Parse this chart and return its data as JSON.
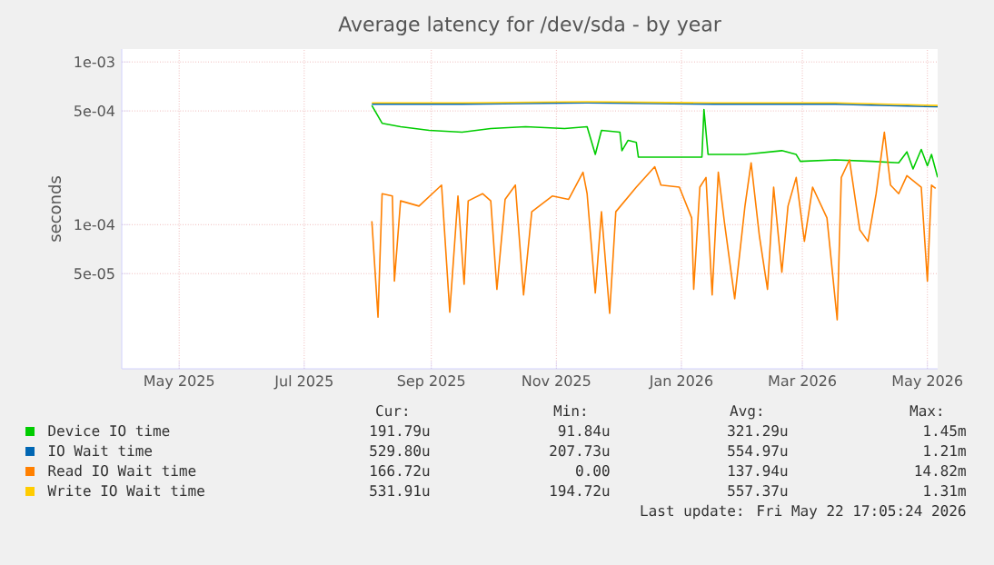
{
  "chart_data": {
    "type": "line",
    "title": "Average latency for /dev/sda - by year",
    "ylabel": "seconds",
    "log": "y",
    "grid": true,
    "legend": "bottom",
    "xlim": [
      "2025-04-18",
      "2026-05-21"
    ],
    "ylim": [
      1.3e-05,
      0.0012
    ],
    "xticks": [
      {
        "value": "2025-05-16",
        "label": "May 2025"
      },
      {
        "value": "2025-07-16",
        "label": "Jul 2025"
      },
      {
        "value": "2025-09-16",
        "label": "Sep 2025"
      },
      {
        "value": "2025-11-16",
        "label": "Nov 2025"
      },
      {
        "value": "2026-01-16",
        "label": "Jan 2026"
      },
      {
        "value": "2026-03-16",
        "label": "Mar 2026"
      },
      {
        "value": "2026-05-16",
        "label": "May 2026"
      }
    ],
    "yticks": [
      {
        "value": 0.001,
        "label": "1e-03"
      },
      {
        "value": 0.0005,
        "label": "5e-04"
      },
      {
        "value": 0.0001,
        "label": "1e-04"
      },
      {
        "value": 5e-05,
        "label": "5e-05"
      }
    ],
    "series": [
      {
        "name": "Device IO time",
        "color": "#00cc00",
        "x": [
          "2025-08-18",
          "2025-08-23",
          "2025-09-01",
          "2025-09-15",
          "2025-10-01",
          "2025-10-15",
          "2025-11-01",
          "2025-11-20",
          "2025-12-01",
          "2025-12-05",
          "2025-12-08",
          "2025-12-17",
          "2025-12-18",
          "2025-12-21",
          "2025-12-25",
          "2025-12-26",
          "2026-01-12",
          "2026-01-26",
          "2026-01-27",
          "2026-01-29",
          "2026-02-16",
          "2026-03-06",
          "2026-03-13",
          "2026-03-15",
          "2026-04-01",
          "2026-04-19",
          "2026-05-02",
          "2026-05-06",
          "2026-05-09",
          "2026-05-13",
          "2026-05-16",
          "2026-05-18",
          "2026-05-21"
        ],
        "values": [
          0.00054,
          0.00042,
          0.0004,
          0.00038,
          0.00037,
          0.00039,
          0.0004,
          0.00039,
          0.0004,
          0.00027,
          0.00038,
          0.00037,
          0.000285,
          0.00033,
          0.00032,
          0.00026,
          0.00026,
          0.00026,
          0.00051,
          0.00027,
          0.00027,
          0.000285,
          0.00027,
          0.000245,
          0.00025,
          0.000245,
          0.00024,
          0.00028,
          0.00022,
          0.00029,
          0.00023,
          0.00027,
          0.000195
        ]
      },
      {
        "name": "IO Wait time",
        "color": "#0066b3",
        "x": [
          "2025-08-18",
          "2025-10-01",
          "2025-12-01",
          "2026-02-01",
          "2026-04-01",
          "2026-05-21"
        ],
        "values": [
          0.00055,
          0.00055,
          0.00056,
          0.00055,
          0.00055,
          0.00053
        ]
      },
      {
        "name": "Read IO Wait time",
        "color": "#ff8000",
        "x": [
          "2025-08-18",
          "2025-08-21",
          "2025-08-23",
          "2025-08-28",
          "2025-08-29",
          "2025-09-01",
          "2025-09-10",
          "2025-09-21",
          "2025-09-25",
          "2025-09-29",
          "2025-10-02",
          "2025-10-04",
          "2025-10-11",
          "2025-10-15",
          "2025-10-18",
          "2025-10-22",
          "2025-10-27",
          "2025-10-31",
          "2025-11-04",
          "2025-11-14",
          "2025-11-22",
          "2025-11-29",
          "2025-12-01",
          "2025-12-05",
          "2025-12-08",
          "2025-12-12",
          "2025-12-15",
          "2025-12-25",
          "2026-01-03",
          "2026-01-06",
          "2026-01-15",
          "2026-01-21",
          "2026-01-22",
          "2026-01-25",
          "2026-01-28",
          "2026-01-31",
          "2026-02-03",
          "2026-02-06",
          "2026-02-11",
          "2026-02-16",
          "2026-02-19",
          "2026-02-23",
          "2026-02-27",
          "2026-03-02",
          "2026-03-06",
          "2026-03-09",
          "2026-03-13",
          "2026-03-17",
          "2026-03-21",
          "2026-03-28",
          "2026-04-02",
          "2026-04-04",
          "2026-04-08",
          "2026-04-13",
          "2026-04-17",
          "2026-04-21",
          "2026-04-25",
          "2026-04-28",
          "2026-05-02",
          "2026-05-06",
          "2026-05-13",
          "2026-05-16",
          "2026-05-18",
          "2026-05-20"
        ],
        "values": [
          0.000105,
          2.7e-05,
          0.000155,
          0.00015,
          4.5e-05,
          0.00014,
          0.00013,
          0.000175,
          2.9e-05,
          0.00015,
          4.3e-05,
          0.00014,
          0.000155,
          0.00014,
          4e-05,
          0.000143,
          0.000175,
          3.7e-05,
          0.00012,
          0.00015,
          0.000143,
          0.00021,
          0.000155,
          3.8e-05,
          0.00012,
          2.85e-05,
          0.00012,
          0.00017,
          0.000227,
          0.000175,
          0.00017,
          0.00011,
          4e-05,
          0.00017,
          0.000195,
          3.7e-05,
          0.00021,
          0.000103,
          3.5e-05,
          0.00013,
          0.00024,
          8.6e-05,
          4e-05,
          0.00017,
          5.1e-05,
          0.00013,
          0.000195,
          7.9e-05,
          0.00017,
          0.00011,
          2.6e-05,
          0.000195,
          0.00025,
          9.3e-05,
          7.9e-05,
          0.000155,
          0.00037,
          0.000175,
          0.000155,
          0.0002,
          0.00017,
          4.5e-05,
          0.000175,
          0.000167
        ]
      },
      {
        "name": "Write IO Wait time",
        "color": "#ffcc00",
        "x": [
          "2025-08-18",
          "2025-10-01",
          "2025-12-01",
          "2026-02-01",
          "2026-04-01",
          "2026-05-21"
        ],
        "values": [
          0.00056,
          0.00056,
          0.00057,
          0.00056,
          0.00056,
          0.00054
        ]
      }
    ],
    "annotations": [
      "Cur:",
      "Min:",
      "Avg:",
      "Max:",
      "191.79u",
      "91.84u",
      "321.29u",
      "1.45m",
      "529.80u",
      "207.73u",
      "554.97u",
      "1.21m",
      "166.72u",
      "0.00",
      "137.94u",
      "14.82m",
      "531.91u",
      "194.72u",
      "557.37u",
      "1.31m",
      "Last update: Fri May 22 17:05:24 2026"
    ]
  }
}
